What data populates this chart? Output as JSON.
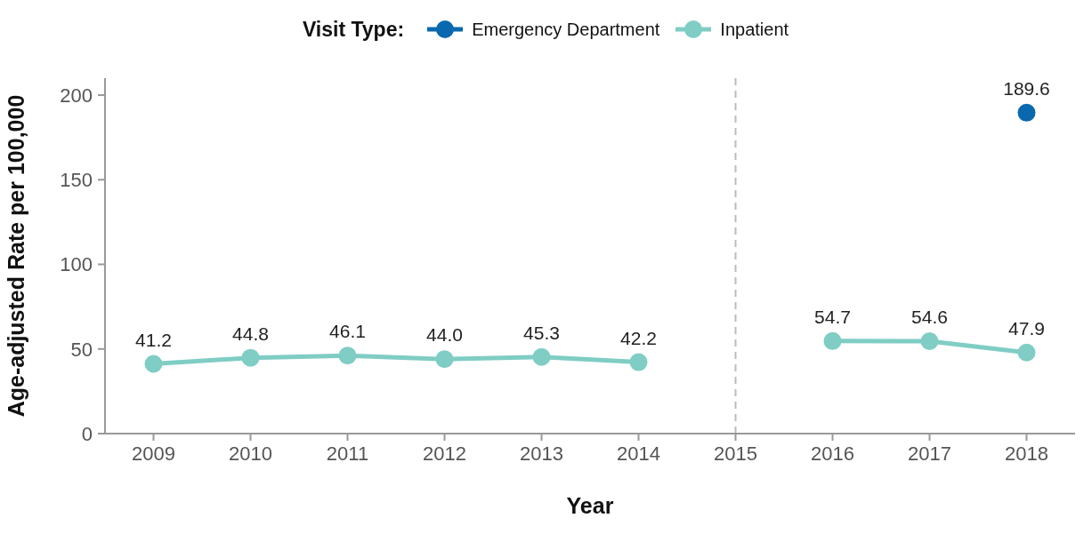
{
  "chart_data": {
    "type": "line",
    "xlabel": "Year",
    "ylabel": "Age-adjusted Rate per 100,000",
    "legend_title": "Visit Type:",
    "legend": "top",
    "x": [
      2009,
      2010,
      2011,
      2012,
      2013,
      2014,
      2015,
      2016,
      2017,
      2018
    ],
    "xlim": [
      2008.5,
      2018.5
    ],
    "xticks": [
      2009,
      2010,
      2011,
      2012,
      2013,
      2014,
      2015,
      2016,
      2017,
      2018
    ],
    "ylim": [
      0,
      210
    ],
    "yticks": [
      0,
      50,
      100,
      150,
      200
    ],
    "grid": false,
    "marker": "circle",
    "line_style": "solid",
    "series": [
      {
        "name": "Emergency Department",
        "color": "#0a69ae",
        "values": [
          null,
          null,
          null,
          null,
          null,
          null,
          null,
          null,
          null,
          189.6
        ],
        "value_labels": [
          null,
          null,
          null,
          null,
          null,
          null,
          null,
          null,
          null,
          "189.6"
        ]
      },
      {
        "name": "Inpatient",
        "color": "#7fcdc4",
        "values": [
          41.2,
          44.8,
          46.1,
          44.0,
          45.3,
          42.2,
          null,
          54.7,
          54.6,
          47.9
        ],
        "value_labels": [
          "41.2",
          "44.8",
          "46.1",
          "44.0",
          "45.3",
          "42.2",
          null,
          "54.7",
          "54.6",
          "47.9"
        ]
      }
    ],
    "ref_lines": [
      {
        "axis": "x",
        "value": 2015,
        "color": "#bbbbbb",
        "line_style": "dashed"
      }
    ]
  }
}
